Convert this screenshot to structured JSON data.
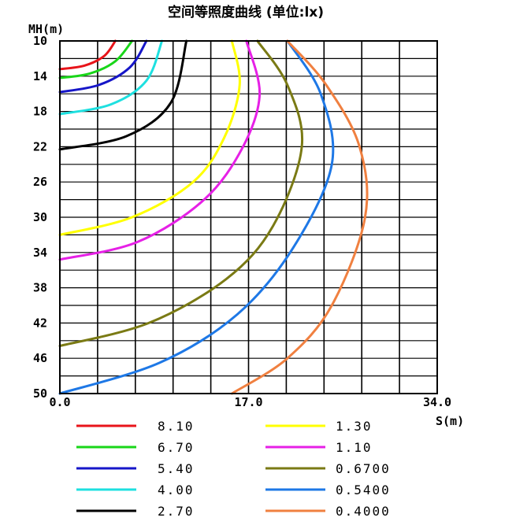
{
  "chart_data": {
    "type": "line",
    "title": "空间等照度曲线 (单位:lx)",
    "xlabel": "S(m)",
    "ylabel": "MH(m)",
    "xlim": [
      0,
      34
    ],
    "ylim": [
      10,
      50
    ],
    "y_inverted": true,
    "grid": true,
    "x_tick_labels": [
      {
        "value": 0,
        "label": "0.0"
      },
      {
        "value": 17,
        "label": "17.0"
      },
      {
        "value": 34,
        "label": "34.0"
      }
    ],
    "y_tick_labels": [
      {
        "value": 10,
        "label": "10"
      },
      {
        "value": 14,
        "label": "14"
      },
      {
        "value": 18,
        "label": "18"
      },
      {
        "value": 22,
        "label": "22"
      },
      {
        "value": 26,
        "label": "26"
      },
      {
        "value": 30,
        "label": "30"
      },
      {
        "value": 34,
        "label": "34"
      },
      {
        "value": 38,
        "label": "38"
      },
      {
        "value": 42,
        "label": "42"
      },
      {
        "value": 46,
        "label": "46"
      },
      {
        "value": 50,
        "label": "50"
      }
    ],
    "legend_placement": "bottom",
    "series": [
      {
        "name": "8.10",
        "color": "#e8141a",
        "x": [
          0,
          2.2,
          4.0,
          5.0
        ],
        "y": [
          13.2,
          12.8,
          11.7,
          10.0
        ]
      },
      {
        "name": "6.70",
        "color": "#19d619",
        "x": [
          0,
          2.7,
          5.0,
          6.5
        ],
        "y": [
          14.2,
          13.7,
          12.3,
          10.0
        ]
      },
      {
        "name": "5.40",
        "color": "#1616c8",
        "x": [
          0,
          3.5,
          6.3,
          7.8
        ],
        "y": [
          15.8,
          15.0,
          13.0,
          10.0
        ]
      },
      {
        "name": "4.00",
        "color": "#1ee0e0",
        "x": [
          0,
          4.6,
          7.8,
          9.2
        ],
        "y": [
          18.3,
          17.2,
          14.5,
          10.0
        ]
      },
      {
        "name": "2.70",
        "color": "#000000",
        "x": [
          0,
          6.0,
          10.0,
          11.4
        ],
        "y": [
          22.3,
          20.8,
          17.0,
          10.0
        ]
      },
      {
        "name": "1.30",
        "color": "#ffff00",
        "x": [
          0,
          6.5,
          12.0,
          14.8,
          16.2,
          15.5
        ],
        "y": [
          32.0,
          30.0,
          26.0,
          21.0,
          15.0,
          10.0
        ]
      },
      {
        "name": "1.10",
        "color": "#e620e6",
        "x": [
          0,
          7.0,
          13.0,
          16.5,
          18.0,
          16.8
        ],
        "y": [
          34.8,
          32.8,
          28.0,
          22.0,
          16.0,
          10.0
        ]
      },
      {
        "name": "0.6700",
        "color": "#7a7a14",
        "x": [
          0,
          8.0,
          15.0,
          19.2,
          21.8,
          20.5,
          17.8
        ],
        "y": [
          44.6,
          42.0,
          37.0,
          31.0,
          22.0,
          15.0,
          10.0
        ]
      },
      {
        "name": "0.5400",
        "color": "#1e78e6",
        "x": [
          0,
          9.0,
          16.0,
          21.0,
          24.5,
          23.5,
          20.5
        ],
        "y": [
          50.0,
          46.5,
          41.0,
          33.5,
          24.0,
          16.0,
          10.0
        ]
      },
      {
        "name": "0.4000",
        "color": "#f08040",
        "x": [
          15.5,
          20.5,
          24.5,
          27.5,
          27.0,
          24.0,
          20.5
        ],
        "y": [
          50.0,
          46.0,
          40.0,
          30.0,
          22.0,
          15.0,
          10.0
        ]
      }
    ]
  }
}
